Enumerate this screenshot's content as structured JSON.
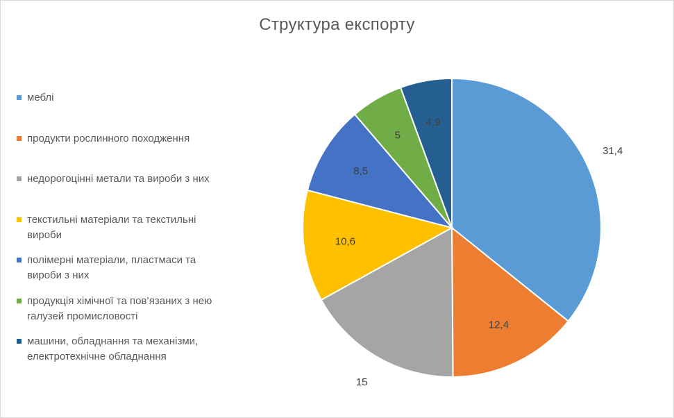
{
  "chart_data": {
    "type": "pie",
    "title": "Структура експорту",
    "legend_position": "left",
    "slices": [
      {
        "label": "меблі",
        "value": 31.4,
        "value_label": "31,4",
        "color": "#5B9BD5",
        "label_outside": true,
        "label_color": "#404040"
      },
      {
        "label": "продукти рослинного походження",
        "value": 12.4,
        "value_label": "12,4",
        "color": "#ED7D31",
        "label_outside": false,
        "label_color": "#404040"
      },
      {
        "label": "недорогоцінні метали та вироби з них",
        "value": 15,
        "value_label": "15",
        "color": "#A5A5A5",
        "label_outside": true,
        "label_color": "#404040"
      },
      {
        "label": "текстильні матеріали та текстильні вироби",
        "value": 10.6,
        "value_label": "10,6",
        "color": "#FFC000",
        "label_outside": false,
        "label_color": "#404040"
      },
      {
        "label": "полімерні матеріали, пластмаси та вироби з них",
        "value": 8.5,
        "value_label": "8,5",
        "color": "#4472C4",
        "label_outside": false,
        "label_color": "#404040"
      },
      {
        "label": "продукція хімічної та пов’язаних з нею галузей промисловості",
        "value": 5,
        "value_label": "5",
        "color": "#70AD47",
        "label_outside": false,
        "label_color": "#404040"
      },
      {
        "label": "машини, обладнання та механізми, електротехнічне обладнання",
        "value": 4.9,
        "value_label": "4,9",
        "color": "#255E91",
        "label_outside": false,
        "label_color": "#404040"
      }
    ]
  }
}
